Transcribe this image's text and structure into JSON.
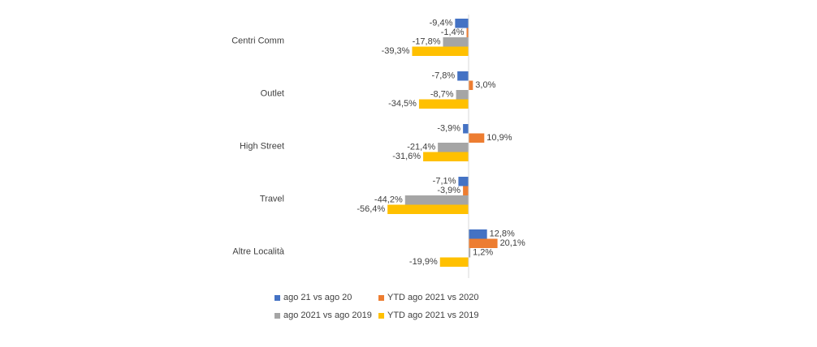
{
  "chart_data": {
    "type": "bar",
    "orientation": "horizontal",
    "categories": [
      "Centri Comm",
      "Outlet",
      "High Street",
      "Travel",
      "Altre Località"
    ],
    "series": [
      {
        "name": "ago 21 vs ago 20",
        "color": "#4472C4",
        "values": [
          -9.4,
          -7.8,
          -3.9,
          -7.1,
          12.8
        ],
        "labels": [
          "-9,4%",
          "-7,8%",
          "-3,9%",
          "-7,1%",
          "12,8%"
        ]
      },
      {
        "name": "YTD ago 2021 vs 2020",
        "color": "#ED7D31",
        "values": [
          -1.4,
          3.0,
          10.9,
          -3.9,
          20.1
        ],
        "labels": [
          "-1,4%",
          "3,0%",
          "10,9%",
          "-3,9%",
          "20,1%"
        ]
      },
      {
        "name": "ago 2021 vs ago 2019",
        "color": "#A5A5A5",
        "values": [
          -17.8,
          -8.7,
          -21.4,
          -44.2,
          1.2
        ],
        "labels": [
          "-17,8%",
          "-8,7%",
          "-21,4%",
          "-44,2%",
          "1,2%"
        ]
      },
      {
        "name": "YTD ago 2021 vs 2019",
        "color": "#FFC000",
        "values": [
          -39.3,
          -34.5,
          -31.6,
          -56.4,
          -19.9
        ],
        "labels": [
          "-39,3%",
          "-34,5%",
          "-31,6%",
          "-56,4%",
          "-19,9%"
        ]
      }
    ],
    "legend_position": "bottom",
    "grid": false
  }
}
